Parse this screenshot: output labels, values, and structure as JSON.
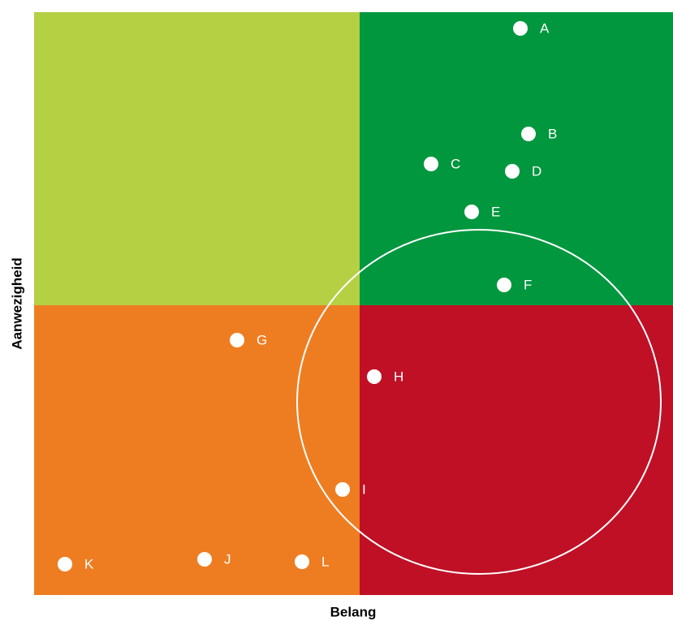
{
  "y_axis_label": "Aanwezigheid",
  "x_axis_label": "Belang",
  "nodes": [
    {
      "label": "A"
    },
    {
      "label": "B"
    },
    {
      "label": "C"
    },
    {
      "label": "D"
    },
    {
      "label": "E"
    },
    {
      "label": "F"
    },
    {
      "label": "G"
    },
    {
      "label": "H"
    },
    {
      "label": "I"
    },
    {
      "label": "J"
    },
    {
      "label": "K"
    },
    {
      "label": "L"
    }
  ]
}
